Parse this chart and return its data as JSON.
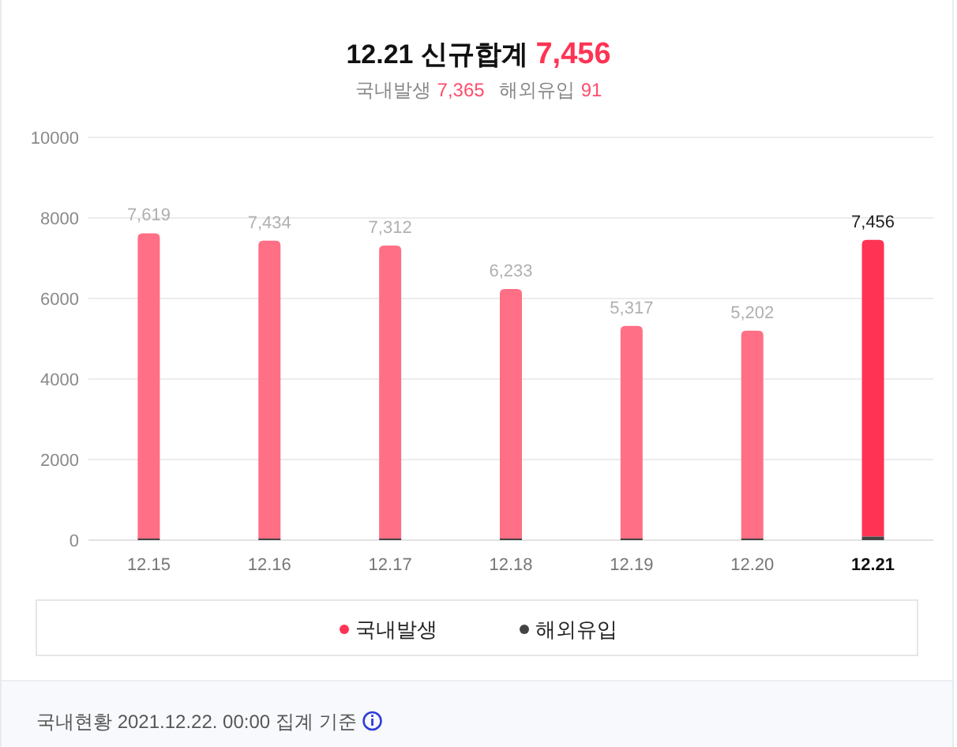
{
  "chart_data": {
    "type": "bar",
    "title": "12.21 신규합계 7,456",
    "subtitle": "국내발생 7,365 해외유입 91",
    "categories": [
      "12.15",
      "12.16",
      "12.17",
      "12.18",
      "12.19",
      "12.20",
      "12.21"
    ],
    "stacked": true,
    "series": [
      {
        "name": "해외유입",
        "color": "#444444",
        "colors": [
          "#444444",
          "#444444",
          "#444444",
          "#444444",
          "#444444",
          "#444444",
          "#444444"
        ],
        "values": [
          40,
          40,
          40,
          40,
          40,
          40,
          91
        ]
      },
      {
        "name": "국내발생",
        "color": "#ff3354",
        "colors": [
          "#ff6f86",
          "#ff6f86",
          "#ff6f86",
          "#ff6f86",
          "#ff6f86",
          "#ff6f86",
          "#ff3354"
        ],
        "values": [
          7579,
          7394,
          7272,
          6193,
          5277,
          5162,
          7365
        ]
      }
    ],
    "totals": [
      "7,619",
      "7,434",
      "7,312",
      "6,233",
      "5,317",
      "5,202",
      "7,456"
    ],
    "ylim": [
      0,
      10000
    ],
    "yticks": [
      0,
      2000,
      4000,
      6000,
      8000,
      10000
    ],
    "grid": "y",
    "legend": "bottom",
    "annotations": [
      "국내현황 2021.12.22. 00:00 집계 기준"
    ]
  }
}
